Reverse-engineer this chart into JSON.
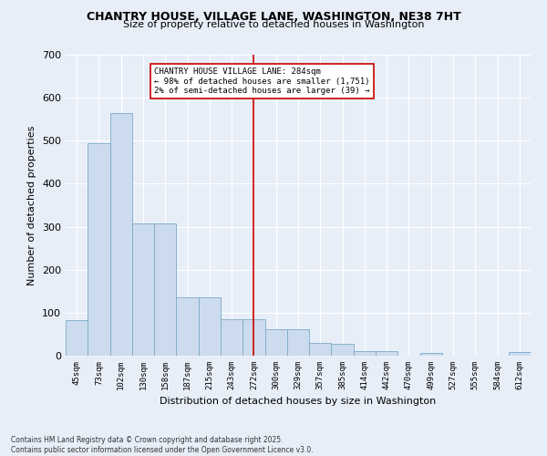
{
  "title": "CHANTRY HOUSE, VILLAGE LANE, WASHINGTON, NE38 7HT",
  "subtitle": "Size of property relative to detached houses in Washington",
  "xlabel": "Distribution of detached houses by size in Washington",
  "ylabel": "Number of detached properties",
  "categories": [
    "45sqm",
    "73sqm",
    "102sqm",
    "130sqm",
    "158sqm",
    "187sqm",
    "215sqm",
    "243sqm",
    "272sqm",
    "300sqm",
    "329sqm",
    "357sqm",
    "385sqm",
    "414sqm",
    "442sqm",
    "470sqm",
    "499sqm",
    "527sqm",
    "555sqm",
    "584sqm",
    "612sqm"
  ],
  "values": [
    82,
    495,
    565,
    308,
    308,
    135,
    135,
    85,
    85,
    62,
    62,
    30,
    27,
    10,
    10,
    0,
    7,
    0,
    0,
    0,
    8
  ],
  "bar_color": "#ccdcee",
  "bar_edge_color": "#7aaac8",
  "marker_index": 8,
  "marker_color": "#cc0000",
  "annotation_text": "CHANTRY HOUSE VILLAGE LANE: 284sqm\n← 98% of detached houses are smaller (1,751)\n2% of semi-detached houses are larger (39) →",
  "annotation_box_color": "white",
  "annotation_box_edge": "#cc0000",
  "ylim": [
    0,
    700
  ],
  "yticks": [
    0,
    100,
    200,
    300,
    400,
    500,
    600,
    700
  ],
  "footer_line1": "Contains HM Land Registry data © Crown copyright and database right 2025.",
  "footer_line2": "Contains public sector information licensed under the Open Government Licence v3.0.",
  "bg_color": "#e8eef8",
  "plot_bg_color": "#e8eef8",
  "grid_color": "#ffffff"
}
